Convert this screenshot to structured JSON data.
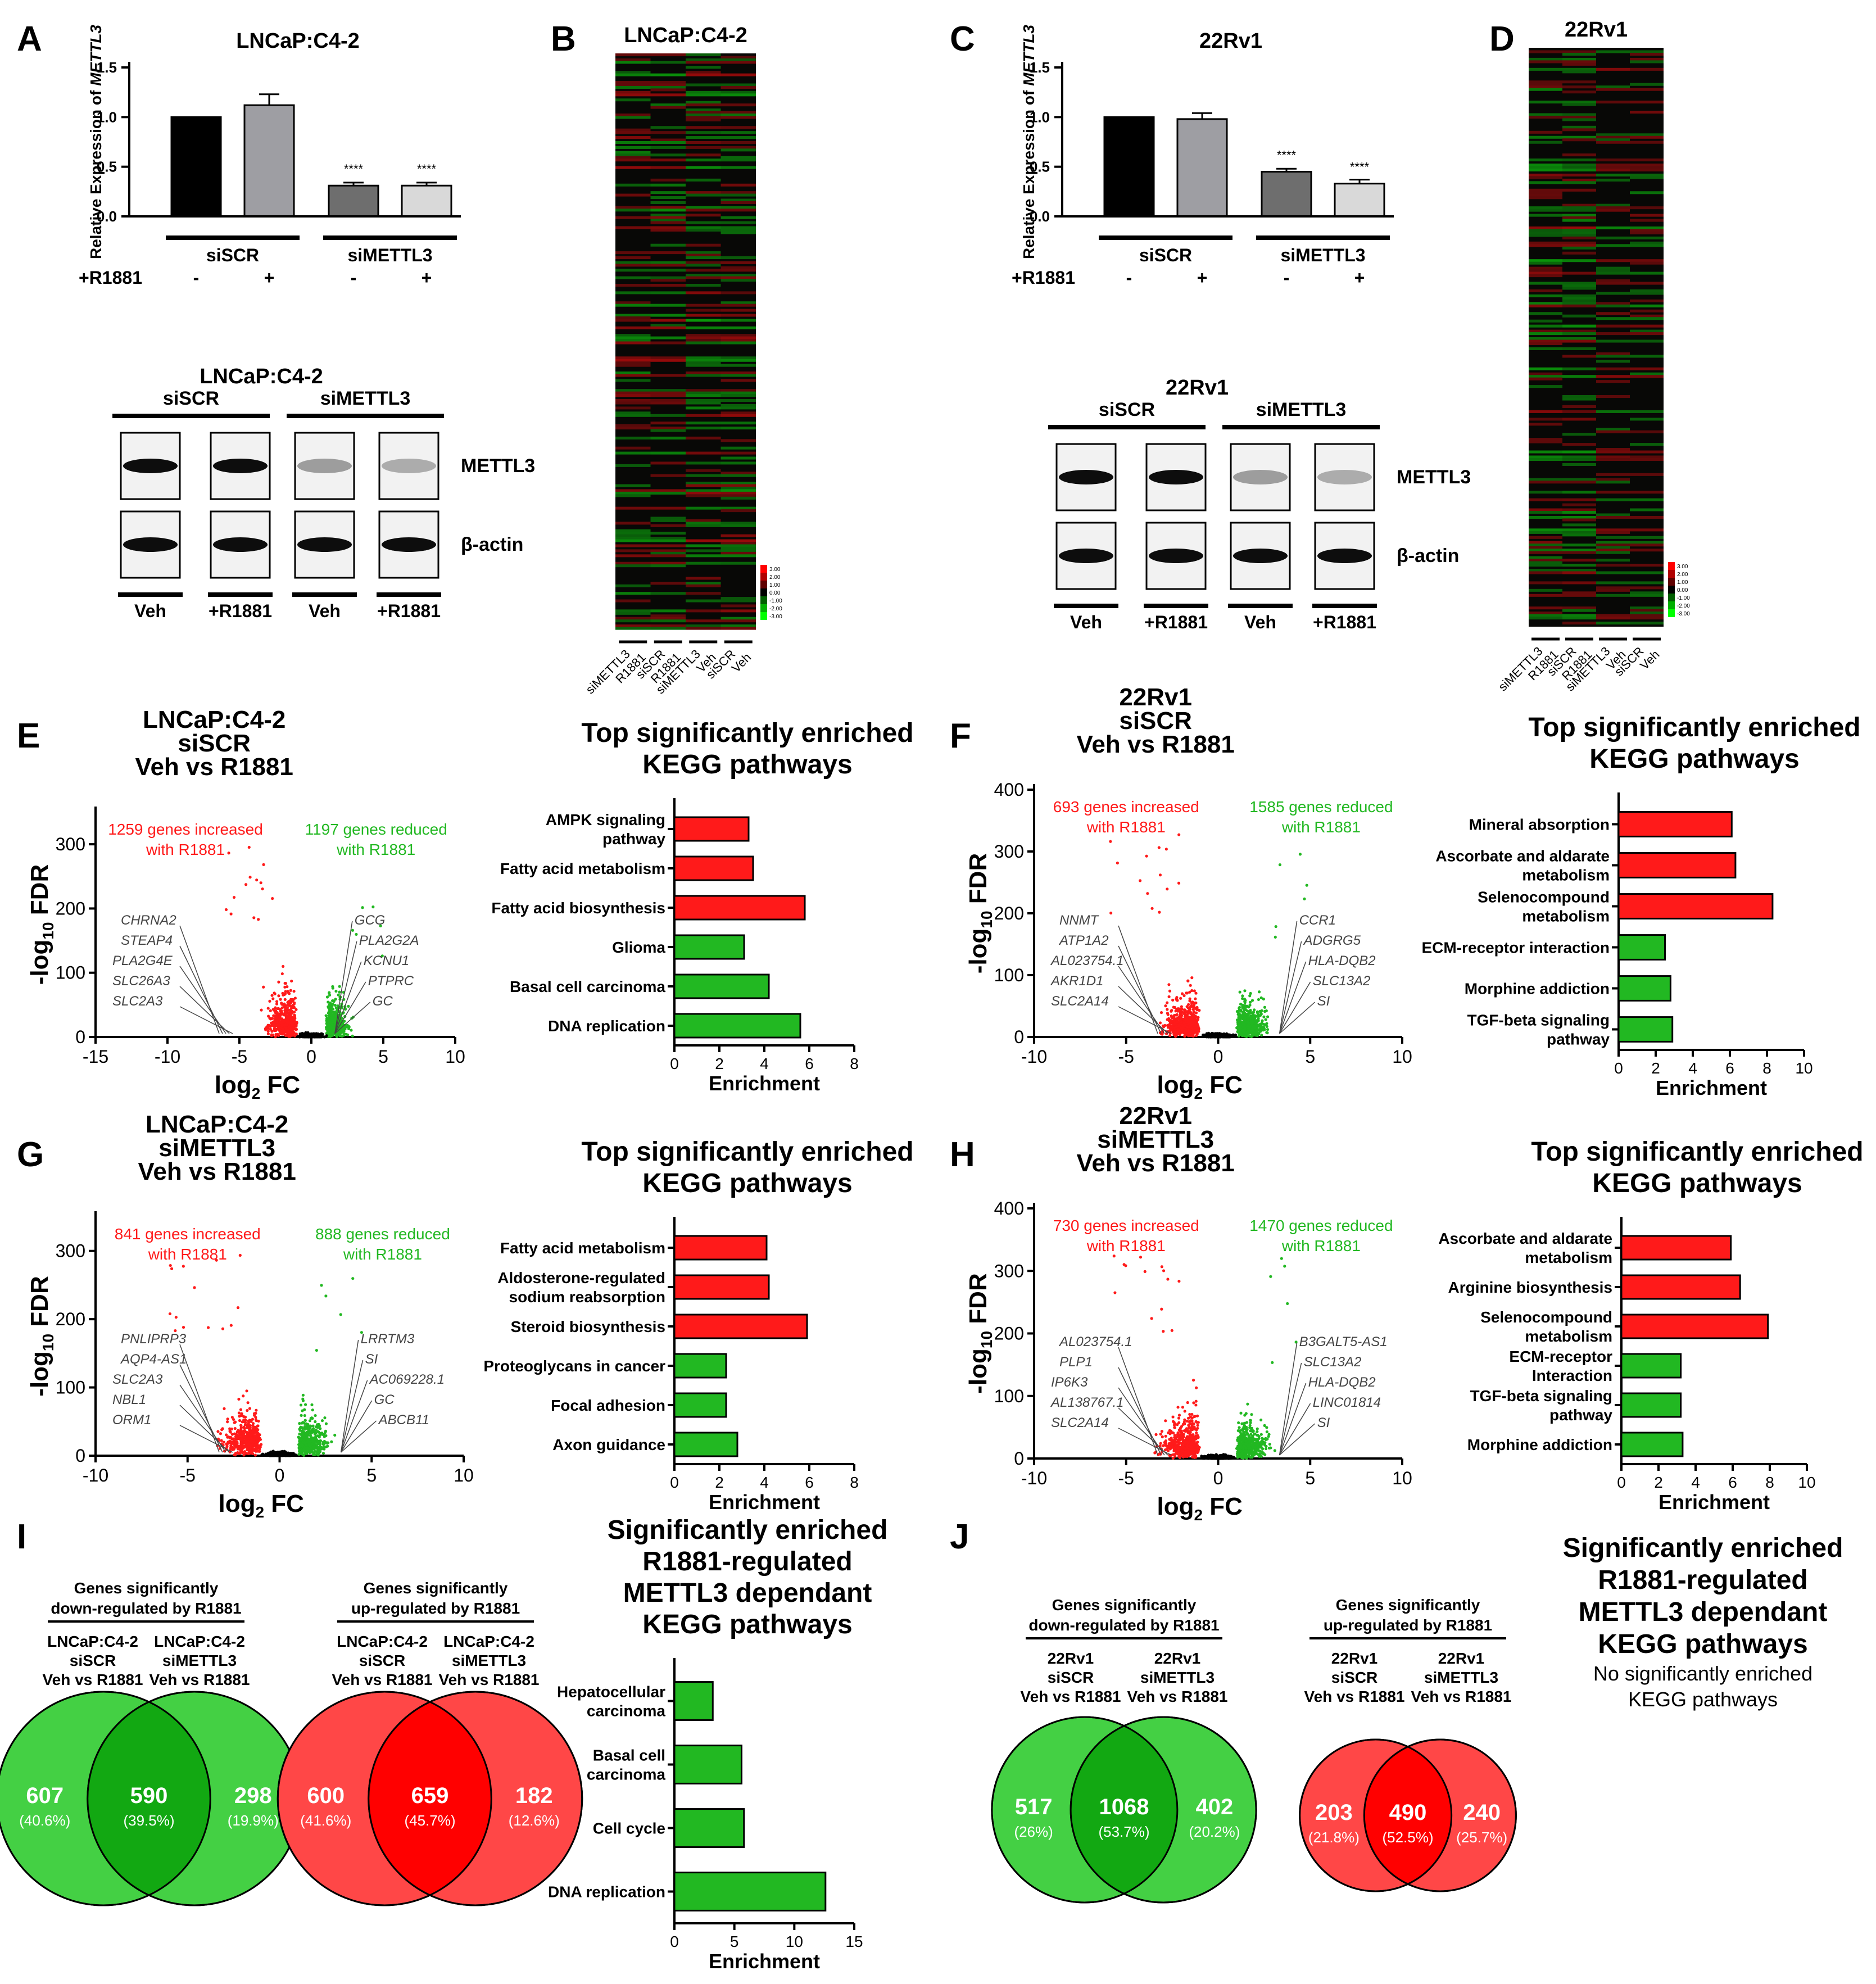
{
  "colors": {
    "red": "#ff1a1a",
    "green": "#22b822",
    "black": "#000000",
    "grey": "#9e9ea3",
    "lightgrey": "#d9d9d9",
    "dark": "#6e6e6e",
    "vennGreen": "#44d044",
    "vennRed": "#ff4747"
  },
  "chart_data": [
    {
      "id": "A",
      "type": "bar",
      "panel": "A",
      "title": "LNCaP:C4-2",
      "ylabel_pre": "Relative Expression of ",
      "ylabel_gene": "METTL3",
      "yticks": [
        "0.0",
        "0.5",
        "1.0",
        "1.5"
      ],
      "ylim": [
        0,
        1.5
      ],
      "values": [
        1.0,
        1.12,
        0.31,
        0.31
      ],
      "errors": [
        0,
        0.11,
        0.03,
        0.03
      ],
      "stars": [
        "",
        "",
        "****",
        "****"
      ],
      "groups": [
        "siSCR",
        "siMETTL3"
      ],
      "r1881_label": "+R1881",
      "r1881_marks": [
        "-",
        "+",
        "-",
        "+"
      ]
    },
    {
      "id": "C",
      "type": "bar",
      "panel": "C",
      "title": "22Rv1",
      "ylabel_pre": "Relative Expression of ",
      "ylabel_gene": "METTL3",
      "yticks": [
        "0.0",
        "0.5",
        "1.0",
        "1.5"
      ],
      "ylim": [
        0,
        1.5
      ],
      "values": [
        1.0,
        0.98,
        0.45,
        0.33
      ],
      "errors": [
        0,
        0.06,
        0.03,
        0.04
      ],
      "stars": [
        "",
        "",
        "****",
        "****"
      ],
      "groups": [
        "siSCR",
        "siMETTL3"
      ],
      "r1881_label": "+R1881",
      "r1881_marks": [
        "-",
        "+",
        "-",
        "+"
      ]
    },
    {
      "id": "E",
      "type": "scatter",
      "panel": "E",
      "title": [
        "LNCaP:C4-2",
        "siSCR",
        "Veh vs R1881"
      ],
      "xlabel": "log",
      "xlabel_sub": "2",
      "xlabel_post": " FC",
      "ylabel_pre": "-log",
      "ylabel_sub": "10",
      "ylabel_post": " FDR",
      "xlim": [
        -15,
        10
      ],
      "xticks": [
        "-15",
        "-10",
        "-5",
        "0",
        "5",
        "10"
      ],
      "ylim": [
        0,
        350
      ],
      "yticks": [
        "0",
        "100",
        "200",
        "300"
      ],
      "up_text": [
        "1259 genes increased",
        "with R1881"
      ],
      "down_text": [
        "1197 genes reduced",
        "with R1881"
      ],
      "left_genes": [
        "CHRNA2",
        "STEAP4",
        "PLA2G4E",
        "SLC26A3",
        "SLC2A3"
      ],
      "right_genes": [
        "GCG",
        "PLA2G2A",
        "KCNU1",
        "PTPRC",
        "GC"
      ]
    },
    {
      "id": "E2",
      "type": "bar",
      "panel": "E",
      "title": [
        "Top significantly enriched",
        "KEGG pathways"
      ],
      "xlabel": "Enrichment",
      "xlim": [
        0,
        8
      ],
      "xticks": [
        "0",
        "2",
        "4",
        "6",
        "8"
      ],
      "categories": [
        [
          "AMPK signaling",
          "pathway"
        ],
        [
          "Fatty acid metabolism"
        ],
        [
          "Fatty acid biosynthesis"
        ],
        [
          "Glioma"
        ],
        [
          "Basal cell carcinoma"
        ],
        [
          "DNA replication"
        ]
      ],
      "values": [
        3.3,
        3.5,
        5.8,
        3.1,
        4.2,
        5.6
      ],
      "colors": [
        "red",
        "red",
        "red",
        "green",
        "green",
        "green"
      ]
    },
    {
      "id": "F",
      "type": "scatter",
      "panel": "F",
      "title": [
        "22Rv1",
        "siSCR",
        "Veh vs R1881"
      ],
      "xlabel": "log",
      "xlabel_sub": "2",
      "xlabel_post": " FC",
      "ylabel_pre": "-log",
      "ylabel_sub": "10",
      "ylabel_post": " FDR",
      "xlim": [
        -10,
        10
      ],
      "xticks": [
        "-10",
        "-5",
        "0",
        "5",
        "10"
      ],
      "ylim": [
        0,
        400
      ],
      "yticks": [
        "0",
        "100",
        "200",
        "300",
        "400"
      ],
      "up_text": [
        "693 genes increased",
        "with R1881"
      ],
      "down_text": [
        "1585 genes reduced",
        "with R1881"
      ],
      "left_genes": [
        "NNMT",
        "ATP1A2",
        "AL023754.1",
        "AKR1D1",
        "SLC2A14"
      ],
      "right_genes": [
        "CCR1",
        "ADGRG5",
        "HLA-DQB2",
        "SLC13A2",
        "SI"
      ]
    },
    {
      "id": "F2",
      "type": "bar",
      "panel": "F",
      "title": [
        "Top significantly enriched",
        "KEGG pathways"
      ],
      "xlabel": "Enrichment",
      "xlim": [
        0,
        10
      ],
      "xticks": [
        "0",
        "2",
        "4",
        "6",
        "8",
        "10"
      ],
      "categories": [
        [
          "Mineral absorption"
        ],
        [
          "Ascorbate and aldarate",
          "metabolism"
        ],
        [
          "Selenocompound",
          "metabolism"
        ],
        [
          "ECM-receptor interaction"
        ],
        [
          "Morphine addiction"
        ],
        [
          "TGF-beta signaling",
          "pathway"
        ]
      ],
      "values": [
        6.1,
        6.3,
        8.3,
        2.5,
        2.8,
        2.9
      ],
      "colors": [
        "red",
        "red",
        "red",
        "green",
        "green",
        "green"
      ]
    },
    {
      "id": "G",
      "type": "scatter",
      "panel": "G",
      "title": [
        "LNCaP:C4-2",
        "siMETTL3",
        "Veh vs R1881"
      ],
      "xlabel": "log",
      "xlabel_sub": "2",
      "xlabel_post": " FC",
      "ylabel_pre": "-log",
      "ylabel_sub": "10",
      "ylabel_post": " FDR",
      "xlim": [
        -10,
        10
      ],
      "xticks": [
        "-10",
        "-5",
        "0",
        "5",
        "10"
      ],
      "ylim": [
        0,
        350
      ],
      "yticks": [
        "0",
        "100",
        "200",
        "300"
      ],
      "up_text": [
        "841 genes increased",
        "with R1881"
      ],
      "down_text": [
        "888 genes reduced",
        "with R1881"
      ],
      "left_genes": [
        "PNLIPRP3",
        "AQP4-AS1",
        "SLC2A3",
        "NBL1",
        "ORM1"
      ],
      "right_genes": [
        "LRRTM3",
        "SI",
        "AC069228.1",
        "GC",
        "ABCB11"
      ]
    },
    {
      "id": "G2",
      "type": "bar",
      "panel": "G",
      "title": [
        "Top significantly enriched",
        "KEGG pathways"
      ],
      "xlabel": "Enrichment",
      "xlim": [
        0,
        8
      ],
      "xticks": [
        "0",
        "2",
        "4",
        "6",
        "8"
      ],
      "categories": [
        [
          "Fatty acid metabolism"
        ],
        [
          "Aldosterone-regulated",
          "sodium reabsorption"
        ],
        [
          "Steroid biosynthesis"
        ],
        [
          "Proteoglycans in cancer"
        ],
        [
          "Focal adhesion"
        ],
        [
          "Axon guidance"
        ]
      ],
      "values": [
        4.1,
        4.2,
        5.9,
        2.3,
        2.3,
        2.8
      ],
      "colors": [
        "red",
        "red",
        "red",
        "green",
        "green",
        "green"
      ]
    },
    {
      "id": "H",
      "type": "scatter",
      "panel": "H",
      "title": [
        "22Rv1",
        "siMETTL3",
        "Veh vs R1881"
      ],
      "xlabel": "log",
      "xlabel_sub": "2",
      "xlabel_post": " FC",
      "ylabel_pre": "-log",
      "ylabel_sub": "10",
      "ylabel_post": " FDR",
      "xlim": [
        -10,
        10
      ],
      "xticks": [
        "-10",
        "-5",
        "0",
        "5",
        "10"
      ],
      "ylim": [
        0,
        400
      ],
      "yticks": [
        "0",
        "100",
        "200",
        "300",
        "400"
      ],
      "up_text": [
        "730 genes increased",
        "with R1881"
      ],
      "down_text": [
        "1470 genes reduced",
        "with R1881"
      ],
      "left_genes": [
        "AL023754.1",
        "PLP1",
        "IP6K3",
        "AL138767.1",
        "SLC2A14"
      ],
      "right_genes": [
        "B3GALT5-AS1",
        "SLC13A2",
        "HLA-DQB2",
        "LINC01814",
        "SI"
      ]
    },
    {
      "id": "H2",
      "type": "bar",
      "panel": "H",
      "title": [
        "Top significantly enriched",
        "KEGG pathways"
      ],
      "xlabel": "Enrichment",
      "xlim": [
        0,
        10
      ],
      "xticks": [
        "0",
        "2",
        "4",
        "6",
        "8",
        "10"
      ],
      "categories": [
        [
          "Ascorbate and aldarate",
          "metabolism"
        ],
        [
          "Arginine biosynthesis"
        ],
        [
          "Selenocompound",
          "metabolism"
        ],
        [
          "ECM-receptor",
          "Interaction"
        ],
        [
          "TGF-beta signaling",
          "pathway"
        ],
        [
          "Morphine addiction"
        ]
      ],
      "values": [
        5.9,
        6.4,
        7.9,
        3.2,
        3.2,
        3.3
      ],
      "colors": [
        "red",
        "red",
        "red",
        "green",
        "green",
        "green"
      ]
    },
    {
      "id": "I2",
      "type": "bar",
      "panel": "I",
      "title": [
        "Significantly enriched",
        "R1881-regulated",
        "METTL3 dependant",
        "KEGG pathways"
      ],
      "xlabel": "Enrichment",
      "xlim": [
        0,
        15
      ],
      "xticks": [
        "0",
        "5",
        "10",
        "15"
      ],
      "categories": [
        [
          "Hepatocellular",
          "carcinoma"
        ],
        [
          "Basal cell",
          "carcinoma"
        ],
        [
          "Cell cycle"
        ],
        [
          "DNA replication"
        ]
      ],
      "values": [
        3.2,
        5.6,
        5.8,
        12.6
      ],
      "colors": [
        "green",
        "green",
        "green",
        "green"
      ]
    }
  ],
  "panel_labels": [
    "A",
    "B",
    "C",
    "D",
    "E",
    "F",
    "G",
    "H",
    "I",
    "J"
  ],
  "heatmaps": [
    {
      "id": "B",
      "title": "LNCaP:C4-2",
      "columns": [
        "siMETTL3",
        "R1881",
        "siSCR",
        "R1881",
        "siMETTL3",
        "Veh",
        "siSCR",
        "Veh"
      ],
      "scale": [
        "3.00",
        "2.00",
        "1.00",
        "0.00",
        "-1.00",
        "-2.00",
        "-3.00"
      ]
    },
    {
      "id": "D",
      "title": "22Rv1",
      "columns": [
        "siMETTL3",
        "R1881",
        "siSCR",
        "R1881",
        "siMETTL3",
        "Veh",
        "siSCR",
        "Veh"
      ],
      "scale": [
        "3.00",
        "2.00",
        "1.00",
        "0.00",
        "-1.00",
        "-2.00",
        "-3.00"
      ]
    }
  ],
  "blots": [
    {
      "id": "A",
      "title": "LNCaP:C4-2",
      "groups": [
        "siSCR",
        "siMETTL3"
      ],
      "proteins": [
        "METTL3",
        "β-actin"
      ],
      "lanes": [
        "Veh",
        "+R1881",
        "Veh",
        "+R1881"
      ]
    },
    {
      "id": "C",
      "title": "22Rv1",
      "groups": [
        "siSCR",
        "siMETTL3"
      ],
      "proteins": [
        "METTL3",
        "β-actin"
      ],
      "lanes": [
        "Veh",
        "+R1881",
        "Veh",
        "+R1881"
      ]
    }
  ],
  "venns": [
    {
      "id": "I-down",
      "header": [
        "Genes significantly",
        "down-regulated by R1881"
      ],
      "left": [
        "LNCaP:C4-2",
        "siSCR",
        "Veh vs R1881"
      ],
      "right": [
        "LNCaP:C4-2",
        "siMETTL3",
        "Veh vs R1881"
      ],
      "counts": [
        "607",
        "590",
        "298"
      ],
      "pcts": [
        "(40.6%)",
        "(39.5%)",
        "(19.9%)"
      ],
      "color": "green"
    },
    {
      "id": "I-up",
      "header": [
        "Genes significantly",
        "up-regulated by R1881"
      ],
      "left": [
        "LNCaP:C4-2",
        "siSCR",
        "Veh vs R1881"
      ],
      "right": [
        "LNCaP:C4-2",
        "siMETTL3",
        "Veh vs R1881"
      ],
      "counts": [
        "600",
        "659",
        "182"
      ],
      "pcts": [
        "(41.6%)",
        "(45.7%)",
        "(12.6%)"
      ],
      "color": "red"
    },
    {
      "id": "J-down",
      "header": [
        "Genes significantly",
        "down-regulated by R1881"
      ],
      "left": [
        "22Rv1",
        "siSCR",
        "Veh vs R1881"
      ],
      "right": [
        "22Rv1",
        "siMETTL3",
        "Veh vs R1881"
      ],
      "counts": [
        "517",
        "1068",
        "402"
      ],
      "pcts": [
        "(26%)",
        "(53.7%)",
        "(20.2%)"
      ],
      "color": "green"
    },
    {
      "id": "J-up",
      "header": [
        "Genes significantly",
        "up-regulated by R1881"
      ],
      "left": [
        "22Rv1",
        "siSCR",
        "Veh vs R1881"
      ],
      "right": [
        "22Rv1",
        "siMETTL3",
        "Veh vs R1881"
      ],
      "counts": [
        "203",
        "490",
        "240"
      ],
      "pcts": [
        "(21.8%)",
        "(52.5%)",
        "(25.7%)"
      ],
      "color": "red"
    }
  ],
  "j_title": [
    "Significantly enriched",
    "R1881-regulated",
    "METTL3 dependant",
    "KEGG pathways"
  ],
  "j_note": [
    "No significantly enriched",
    "KEGG pathways"
  ]
}
